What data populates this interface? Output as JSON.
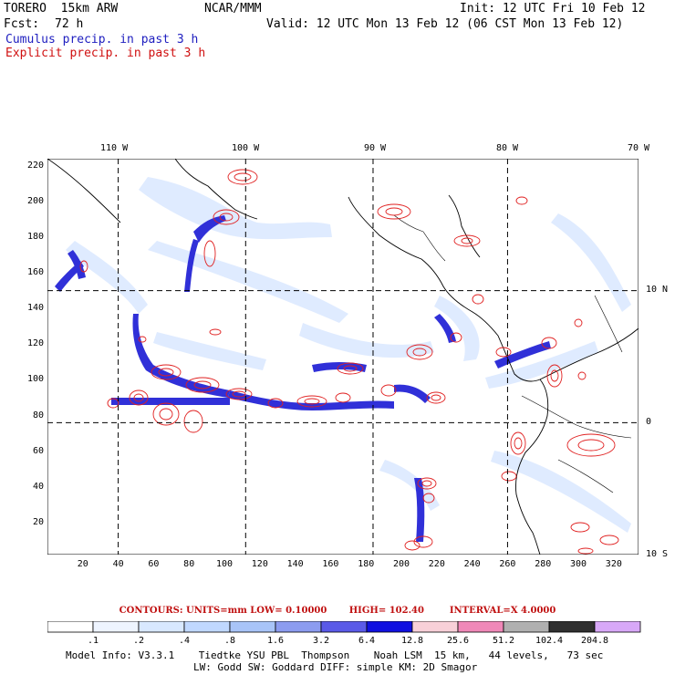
{
  "header": {
    "model": "TORERO  15km ARW",
    "org": "NCAR/MMM",
    "init": "Init: 12 UTC Fri 10 Feb 12",
    "fcst_label": "Fcst:",
    "fcst_value": "72 h",
    "valid": "Valid: 12 UTC Mon 13 Feb 12 (06 CST Mon 13 Feb 12)",
    "cumulus": "Cumulus precip. in past 3 h",
    "explicit": "Explicit precip. in past 3 h"
  },
  "map": {
    "lon_labels": [
      "110 W",
      "100 W",
      "90 W",
      "80 W",
      "70 W"
    ],
    "lat_labels": [
      "10 N",
      "0",
      "10 S"
    ],
    "x_ticks": [
      "20",
      "40",
      "60",
      "80",
      "100",
      "120",
      "140",
      "160",
      "180",
      "200",
      "220",
      "240",
      "260",
      "280",
      "300",
      "320"
    ],
    "y_ticks": [
      "220",
      "200",
      "180",
      "160",
      "140",
      "120",
      "100",
      "80",
      "60",
      "40",
      "20"
    ],
    "x_range": [
      0,
      334
    ],
    "y_range": [
      2,
      224
    ],
    "grid_x": [
      40,
      112,
      184,
      260
    ],
    "grid_y": [
      150,
      76
    ]
  },
  "contours": {
    "units": "CONTOURS:  UNITS=mm  LOW= 0.10000",
    "high": "HIGH=  102.40",
    "interval": "INTERVAL=X  4.0000"
  },
  "legend": {
    "unit": "mm",
    "labels": [
      ".1",
      ".2",
      ".4",
      ".8",
      "1.6",
      "3.2",
      "6.4",
      "12.8",
      "25.6",
      "51.2",
      "102.4",
      "204.8"
    ],
    "colors": [
      "#ffffff",
      "#eef4ff",
      "#d8e8ff",
      "#c0d8ff",
      "#a8c4f8",
      "#8c9cf0",
      "#5a5ae8",
      "#1010e0",
      "#f8d0d8",
      "#f088b8",
      "#b0b0b0",
      "#303030",
      "#d8a8f8"
    ]
  },
  "footer": {
    "line1": "Model Info: V3.3.1    Tiedtke YSU PBL  Thompson    Noah LSM  15 km,   44 levels,   73 sec",
    "line2": "LW: Godd SW: Goddard DIFF: simple KM: 2D Smagor"
  },
  "colors": {
    "cumulus": "#2020c0",
    "explicit": "#d01010",
    "grid": "#000000"
  }
}
